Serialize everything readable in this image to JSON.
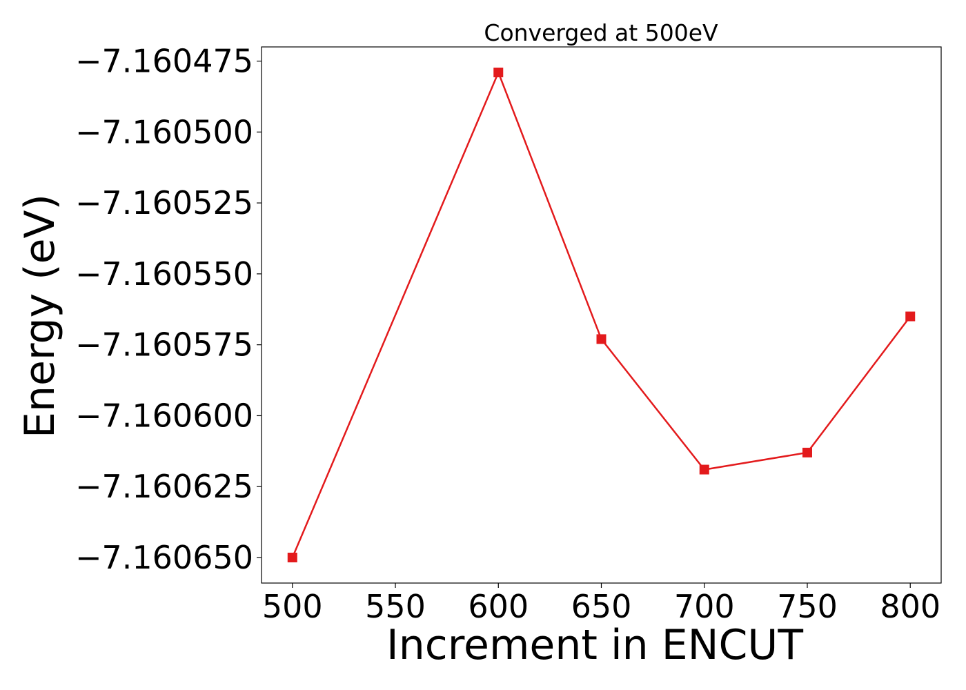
{
  "chart_data": {
    "type": "line",
    "title": "Converged at 500eV",
    "xlabel": "Increment in ENCUT",
    "ylabel": "Energy (eV)",
    "x": [
      500,
      600,
      650,
      700,
      750,
      800
    ],
    "series": [
      {
        "values": [
          -7.16065,
          -7.160479,
          -7.160573,
          -7.160619,
          -7.160613,
          -7.160565
        ]
      }
    ],
    "xlim": [
      485,
      815
    ],
    "ylim": [
      -7.160659,
      -7.16047
    ],
    "xticks": [
      500,
      550,
      600,
      650,
      700,
      750,
      800
    ],
    "xtick_labels": [
      "500",
      "550",
      "600",
      "650",
      "700",
      "750",
      "800"
    ],
    "yticks": [
      -7.160475,
      -7.1605,
      -7.160525,
      -7.16055,
      -7.160575,
      -7.1606,
      -7.160625,
      -7.16065
    ],
    "ytick_labels": [
      "−7.160475",
      "−7.160500",
      "−7.160525",
      "−7.160550",
      "−7.160575",
      "−7.160600",
      "−7.160625",
      "−7.160650"
    ],
    "grid": false,
    "marker": "square",
    "line_color": "#e31a1c"
  }
}
